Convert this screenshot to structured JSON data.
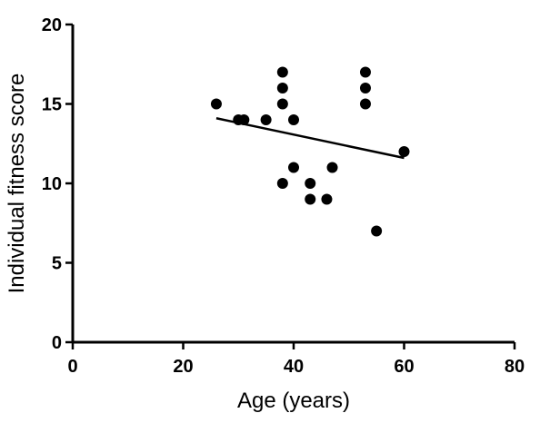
{
  "chart_data": {
    "type": "scatter",
    "title": "",
    "xlabel": "Age (years)",
    "ylabel": "Individual fitness score",
    "xlim": [
      0,
      80
    ],
    "ylim": [
      0,
      20
    ],
    "xticks": [
      0,
      20,
      40,
      60,
      80
    ],
    "yticks": [
      0,
      5,
      10,
      15,
      20
    ],
    "grid": false,
    "series": [
      {
        "points": [
          {
            "x": 26,
            "y": 15
          },
          {
            "x": 30,
            "y": 14
          },
          {
            "x": 31,
            "y": 14
          },
          {
            "x": 35,
            "y": 14
          },
          {
            "x": 38,
            "y": 17
          },
          {
            "x": 38,
            "y": 16
          },
          {
            "x": 38,
            "y": 15
          },
          {
            "x": 38,
            "y": 10
          },
          {
            "x": 40,
            "y": 14
          },
          {
            "x": 40,
            "y": 11
          },
          {
            "x": 43,
            "y": 10
          },
          {
            "x": 43,
            "y": 9
          },
          {
            "x": 46,
            "y": 9
          },
          {
            "x": 47,
            "y": 11
          },
          {
            "x": 53,
            "y": 17
          },
          {
            "x": 53,
            "y": 16
          },
          {
            "x": 53,
            "y": 15
          },
          {
            "x": 55,
            "y": 7
          },
          {
            "x": 60,
            "y": 12
          }
        ],
        "color": "#000000"
      }
    ],
    "trendline": {
      "x": [
        26,
        60
      ],
      "y": [
        14.1,
        11.6
      ]
    }
  }
}
